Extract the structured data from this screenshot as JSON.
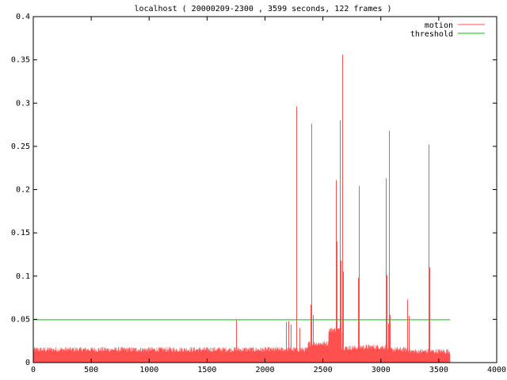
{
  "chart_data": {
    "type": "line",
    "title": "localhost ( 20000209-2300 , 3599 seconds, 122 frames )",
    "xlabel": "",
    "ylabel": "",
    "xlim": [
      0,
      4000
    ],
    "ylim": [
      0,
      0.4
    ],
    "x_ticks": [
      0,
      500,
      1000,
      1500,
      2000,
      2500,
      3000,
      3500,
      4000
    ],
    "y_ticks": [
      0,
      0.05,
      0.1,
      0.15,
      0.2,
      0.25,
      0.3,
      0.35,
      0.4
    ],
    "x_tick_labels": [
      "0",
      "500",
      "1000",
      "1500",
      "2000",
      "2500",
      "3000",
      "3500",
      "4000"
    ],
    "y_tick_labels": [
      "0",
      "0.05",
      "0.1",
      "0.15",
      "0.2",
      "0.25",
      "0.3",
      "0.35",
      "0.4"
    ],
    "grid": false,
    "legend_position": "top-right",
    "series": [
      {
        "name": "motion",
        "color": "#ff5050",
        "style": "impulse-noise",
        "baseline_level": 0.015,
        "baseline_noise": 0.003,
        "x_range": [
          0,
          3599
        ],
        "segments": [
          {
            "x": [
              2370,
              2550
            ],
            "level": 0.022
          },
          {
            "x": [
              2550,
              2660
            ],
            "level": 0.038
          },
          {
            "x": [
              2660,
              2800
            ],
            "level": 0.017
          },
          {
            "x": [
              2800,
              3050
            ],
            "level": 0.018
          },
          {
            "x": [
              3230,
              3599
            ],
            "level": 0.013
          }
        ],
        "spikes": [
          {
            "x": 1750,
            "y": 0.05
          },
          {
            "x": 2180,
            "y": 0.047
          },
          {
            "x": 2200,
            "y": 0.048
          },
          {
            "x": 2220,
            "y": 0.044
          },
          {
            "x": 2270,
            "y": 0.296
          },
          {
            "x": 2300,
            "y": 0.04
          },
          {
            "x": 2390,
            "y": 0.067
          },
          {
            "x": 2400,
            "y": 0.276
          },
          {
            "x": 2415,
            "y": 0.055
          },
          {
            "x": 2610,
            "y": 0.211
          },
          {
            "x": 2620,
            "y": 0.14
          },
          {
            "x": 2645,
            "y": 0.28
          },
          {
            "x": 2650,
            "y": 0.118
          },
          {
            "x": 2665,
            "y": 0.356
          },
          {
            "x": 2675,
            "y": 0.105
          },
          {
            "x": 2800,
            "y": 0.098
          },
          {
            "x": 2810,
            "y": 0.204
          },
          {
            "x": 3040,
            "y": 0.213
          },
          {
            "x": 3050,
            "y": 0.101
          },
          {
            "x": 3060,
            "y": 0.045
          },
          {
            "x": 3070,
            "y": 0.268
          },
          {
            "x": 3080,
            "y": 0.055
          },
          {
            "x": 3230,
            "y": 0.073
          },
          {
            "x": 3240,
            "y": 0.054
          },
          {
            "x": 3410,
            "y": 0.252
          },
          {
            "x": 3420,
            "y": 0.11
          }
        ]
      },
      {
        "name": "threshold",
        "color": "#00c800",
        "style": "line",
        "x": [
          0,
          3599
        ],
        "y": [
          0.05,
          0.05
        ]
      }
    ]
  }
}
